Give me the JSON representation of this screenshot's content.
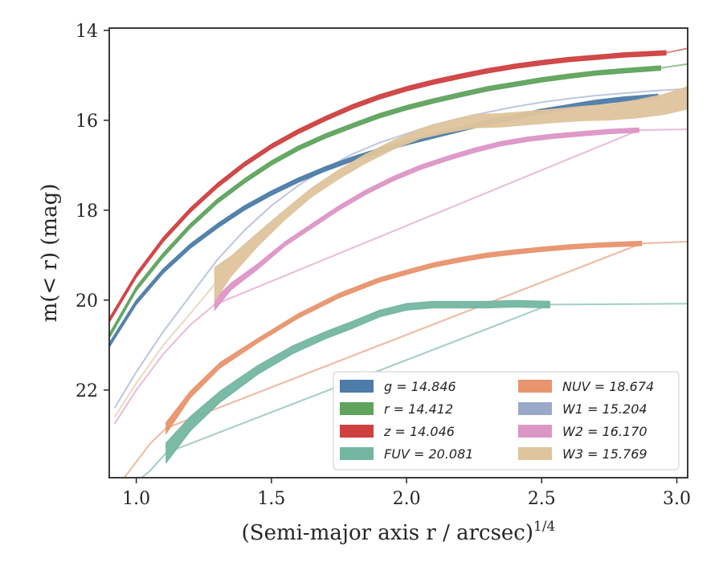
{
  "chart_data": {
    "type": "line",
    "title": "",
    "xlabel": "(Semi-major axis r / arcsec)",
    "xlabel_exponent": "1/4",
    "ylabel": "m(< r) (mag)",
    "xlim": [
      0.9,
      3.04
    ],
    "ylim": [
      23.95,
      13.95
    ],
    "y_inverted": true,
    "xticks": [
      1.0,
      1.5,
      2.0,
      2.5,
      3.0
    ],
    "xtick_labels": [
      "1.0",
      "1.5",
      "2.0",
      "2.5",
      "3.0"
    ],
    "yticks": [
      14,
      16,
      18,
      20,
      22
    ],
    "ytick_labels": [
      "14",
      "16",
      "18",
      "20",
      "22"
    ],
    "grid": false,
    "legend_position": "lower-right",
    "series": [
      {
        "name": "g = 14.846",
        "label": "g",
        "total": "14.846",
        "color": "#4c7ca8",
        "observed_x": [
          0.9,
          1.0,
          1.1,
          1.2,
          1.3,
          1.4,
          1.5,
          1.6,
          1.7,
          1.8,
          1.9,
          2.0,
          2.1,
          2.2,
          2.3,
          2.4,
          2.5,
          2.6,
          2.7,
          2.8,
          2.93
        ],
        "observed_y": [
          21.0,
          20.05,
          19.35,
          18.8,
          18.35,
          17.95,
          17.62,
          17.33,
          17.08,
          16.86,
          16.67,
          16.5,
          16.35,
          16.2,
          16.05,
          15.93,
          15.8,
          15.7,
          15.6,
          15.53,
          15.47
        ],
        "observed_width": [
          0.1,
          0.1,
          0.1,
          0.1,
          0.1,
          0.1,
          0.1,
          0.1,
          0.1,
          0.1,
          0.1,
          0.1,
          0.1,
          0.1,
          0.1,
          0.1,
          0.1,
          0.1,
          0.1,
          0.1,
          0.1
        ],
        "model_x": [],
        "model_y": []
      },
      {
        "name": "r = 14.412",
        "label": "r",
        "total": "14.412",
        "color": "#5fa35d",
        "observed_x": [
          0.9,
          1.0,
          1.1,
          1.2,
          1.3,
          1.4,
          1.5,
          1.6,
          1.7,
          1.8,
          1.9,
          2.0,
          2.1,
          2.2,
          2.3,
          2.4,
          2.5,
          2.6,
          2.7,
          2.8,
          2.94
        ],
        "observed_y": [
          20.8,
          19.75,
          19.0,
          18.35,
          17.8,
          17.35,
          16.95,
          16.62,
          16.35,
          16.12,
          15.9,
          15.72,
          15.57,
          15.43,
          15.3,
          15.2,
          15.1,
          15.02,
          14.95,
          14.9,
          14.84
        ],
        "observed_width": [
          0.1,
          0.1,
          0.1,
          0.1,
          0.1,
          0.1,
          0.1,
          0.1,
          0.1,
          0.1,
          0.1,
          0.1,
          0.1,
          0.1,
          0.1,
          0.1,
          0.1,
          0.1,
          0.1,
          0.1,
          0.1
        ],
        "model_x": [
          2.94,
          3.04
        ],
        "model_y": [
          14.84,
          14.75
        ]
      },
      {
        "name": "z = 14.046",
        "label": "z",
        "total": "14.046",
        "color": "#cf4040",
        "observed_x": [
          0.9,
          1.0,
          1.1,
          1.2,
          1.3,
          1.4,
          1.5,
          1.6,
          1.7,
          1.8,
          1.9,
          2.0,
          2.1,
          2.2,
          2.3,
          2.4,
          2.5,
          2.6,
          2.7,
          2.8,
          2.96
        ],
        "observed_y": [
          20.45,
          19.45,
          18.65,
          18.0,
          17.45,
          16.98,
          16.58,
          16.25,
          15.96,
          15.7,
          15.48,
          15.3,
          15.15,
          15.02,
          14.9,
          14.8,
          14.72,
          14.65,
          14.6,
          14.55,
          14.5
        ],
        "observed_width": [
          0.1,
          0.1,
          0.1,
          0.1,
          0.1,
          0.1,
          0.1,
          0.1,
          0.1,
          0.1,
          0.1,
          0.1,
          0.1,
          0.1,
          0.1,
          0.1,
          0.1,
          0.1,
          0.1,
          0.1,
          0.1
        ],
        "model_x": [
          2.96,
          3.04
        ],
        "model_y": [
          14.5,
          14.4
        ]
      },
      {
        "name": "FUV = 20.081",
        "label": "FUV",
        "total": "20.081",
        "color": "#73b6a2",
        "observed_x": [
          1.11,
          1.2,
          1.31,
          1.45,
          1.58,
          1.7,
          1.8,
          1.9,
          2.0,
          2.1,
          2.2,
          2.3,
          2.4,
          2.53
        ],
        "observed_y": [
          23.4,
          22.75,
          22.15,
          21.55,
          21.1,
          20.78,
          20.55,
          20.3,
          20.15,
          20.1,
          20.1,
          20.1,
          20.08,
          20.1
        ],
        "observed_width": [
          0.45,
          0.32,
          0.25,
          0.2,
          0.18,
          0.16,
          0.16,
          0.15,
          0.15,
          0.15,
          0.15,
          0.15,
          0.15,
          0.15
        ],
        "model_x": [
          0.99,
          1.05,
          1.11,
          2.53,
          3.04
        ],
        "model_y": [
          24.1,
          23.8,
          23.4,
          20.1,
          20.08
        ]
      },
      {
        "name": "NUV = 18.674",
        "label": "NUV",
        "total": "18.674",
        "color": "#e8946d",
        "observed_x": [
          1.11,
          1.2,
          1.31,
          1.45,
          1.6,
          1.75,
          1.9,
          2.0,
          2.1,
          2.2,
          2.3,
          2.4,
          2.5,
          2.6,
          2.7,
          2.87
        ],
        "observed_y": [
          22.85,
          22.1,
          21.45,
          20.9,
          20.35,
          19.9,
          19.55,
          19.38,
          19.22,
          19.1,
          19.0,
          18.93,
          18.87,
          18.82,
          18.78,
          18.74
        ],
        "observed_width": [
          0.25,
          0.15,
          0.12,
          0.1,
          0.1,
          0.1,
          0.1,
          0.1,
          0.1,
          0.1,
          0.1,
          0.1,
          0.1,
          0.1,
          0.1,
          0.1
        ],
        "model_x": [
          0.95,
          1.0,
          1.05,
          1.11,
          2.87,
          3.04
        ],
        "model_y": [
          24.0,
          23.6,
          23.2,
          22.85,
          18.74,
          18.7
        ]
      },
      {
        "name": "W1 = 15.204",
        "label": "W1",
        "total": "15.204",
        "color": "#9aa9c9",
        "observed_x": [],
        "observed_y": [],
        "observed_width": [],
        "model_x": [
          0.92,
          1.0,
          1.1,
          1.2,
          1.3,
          1.4,
          1.5,
          1.6,
          1.7,
          1.8,
          1.9,
          2.0,
          2.1,
          2.2,
          2.3,
          2.4,
          2.5,
          2.6,
          2.7,
          2.8,
          2.9,
          3.04
        ],
        "model_y": [
          22.4,
          21.6,
          20.7,
          19.9,
          19.1,
          18.45,
          17.9,
          17.45,
          17.07,
          16.75,
          16.5,
          16.3,
          16.1,
          15.95,
          15.82,
          15.7,
          15.6,
          15.52,
          15.45,
          15.4,
          15.35,
          15.3
        ]
      },
      {
        "name": "W2 = 16.170",
        "label": "W2",
        "total": "16.170",
        "color": "#dc96c6",
        "observed_x": [
          1.29,
          1.35,
          1.45,
          1.55,
          1.65,
          1.75,
          1.85,
          1.95,
          2.05,
          2.15,
          2.25,
          2.35,
          2.45,
          2.55,
          2.65,
          2.75,
          2.86
        ],
        "observed_y": [
          20.1,
          19.7,
          19.25,
          18.75,
          18.35,
          17.95,
          17.6,
          17.3,
          17.05,
          16.85,
          16.67,
          16.52,
          16.42,
          16.35,
          16.3,
          16.25,
          16.22
        ],
        "observed_width": [
          0.25,
          0.15,
          0.12,
          0.1,
          0.1,
          0.1,
          0.1,
          0.1,
          0.1,
          0.1,
          0.1,
          0.1,
          0.1,
          0.1,
          0.1,
          0.1,
          0.1
        ],
        "model_x": [
          0.92,
          1.0,
          1.1,
          1.2,
          1.29,
          2.86,
          3.04
        ],
        "model_y": [
          22.75,
          22.0,
          21.2,
          20.55,
          20.1,
          16.22,
          16.2
        ]
      },
      {
        "name": "W3 = 15.769",
        "label": "W3",
        "total": "15.769",
        "color": "#dfc49c",
        "observed_x": [
          1.29,
          1.35,
          1.45,
          1.55,
          1.65,
          1.75,
          1.85,
          1.95,
          2.05,
          2.15,
          2.25,
          2.35,
          2.45,
          2.55,
          2.65,
          2.75,
          2.85,
          2.95,
          3.04
        ],
        "observed_y": [
          19.65,
          19.25,
          18.65,
          18.1,
          17.6,
          17.2,
          16.85,
          16.55,
          16.3,
          16.15,
          16.02,
          16.0,
          15.95,
          15.9,
          15.85,
          15.82,
          15.75,
          15.65,
          15.5
        ],
        "observed_width": [
          0.75,
          0.45,
          0.3,
          0.22,
          0.2,
          0.2,
          0.2,
          0.2,
          0.22,
          0.25,
          0.3,
          0.3,
          0.3,
          0.3,
          0.32,
          0.35,
          0.4,
          0.45,
          0.5
        ],
        "model_x": [
          0.92,
          1.0,
          1.1,
          1.2,
          1.29
        ],
        "model_y": [
          22.6,
          21.85,
          21.0,
          20.3,
          19.65
        ]
      }
    ]
  }
}
